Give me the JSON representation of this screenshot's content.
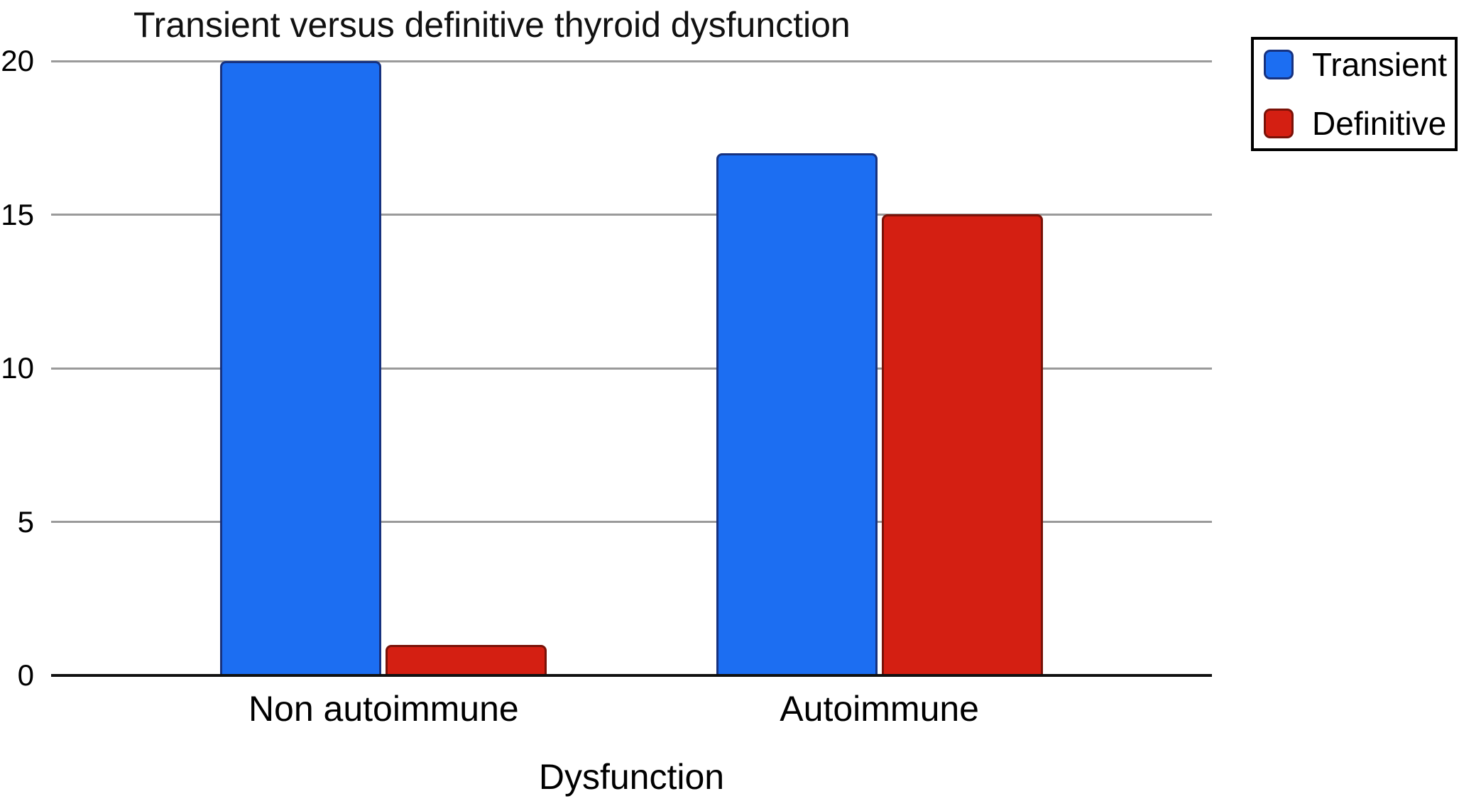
{
  "chart_data": {
    "type": "bar",
    "title": "Transient versus definitive thyroid dysfunction",
    "xlabel": "Dysfunction",
    "ylabel": "",
    "categories": [
      "Non autoimmune",
      "Autoimmune"
    ],
    "series": [
      {
        "name": "Transient",
        "color": "#1C6EF2",
        "border_color": "#17327F",
        "values": [
          20,
          17
        ]
      },
      {
        "name": "Definitive",
        "color": "#D41F12",
        "border_color": "#7A1208",
        "values": [
          1,
          15
        ]
      }
    ],
    "ylim": [
      0,
      20
    ],
    "yticks": [
      0,
      5,
      10,
      15,
      20
    ],
    "grid": true,
    "legend_position": "top-right",
    "legend_labels": [
      "Transient",
      "Definitive"
    ]
  },
  "colors": {
    "background": "#ffffff",
    "gridline": "#9a9a9a",
    "axis_line": "#111111",
    "text": "#000000"
  }
}
